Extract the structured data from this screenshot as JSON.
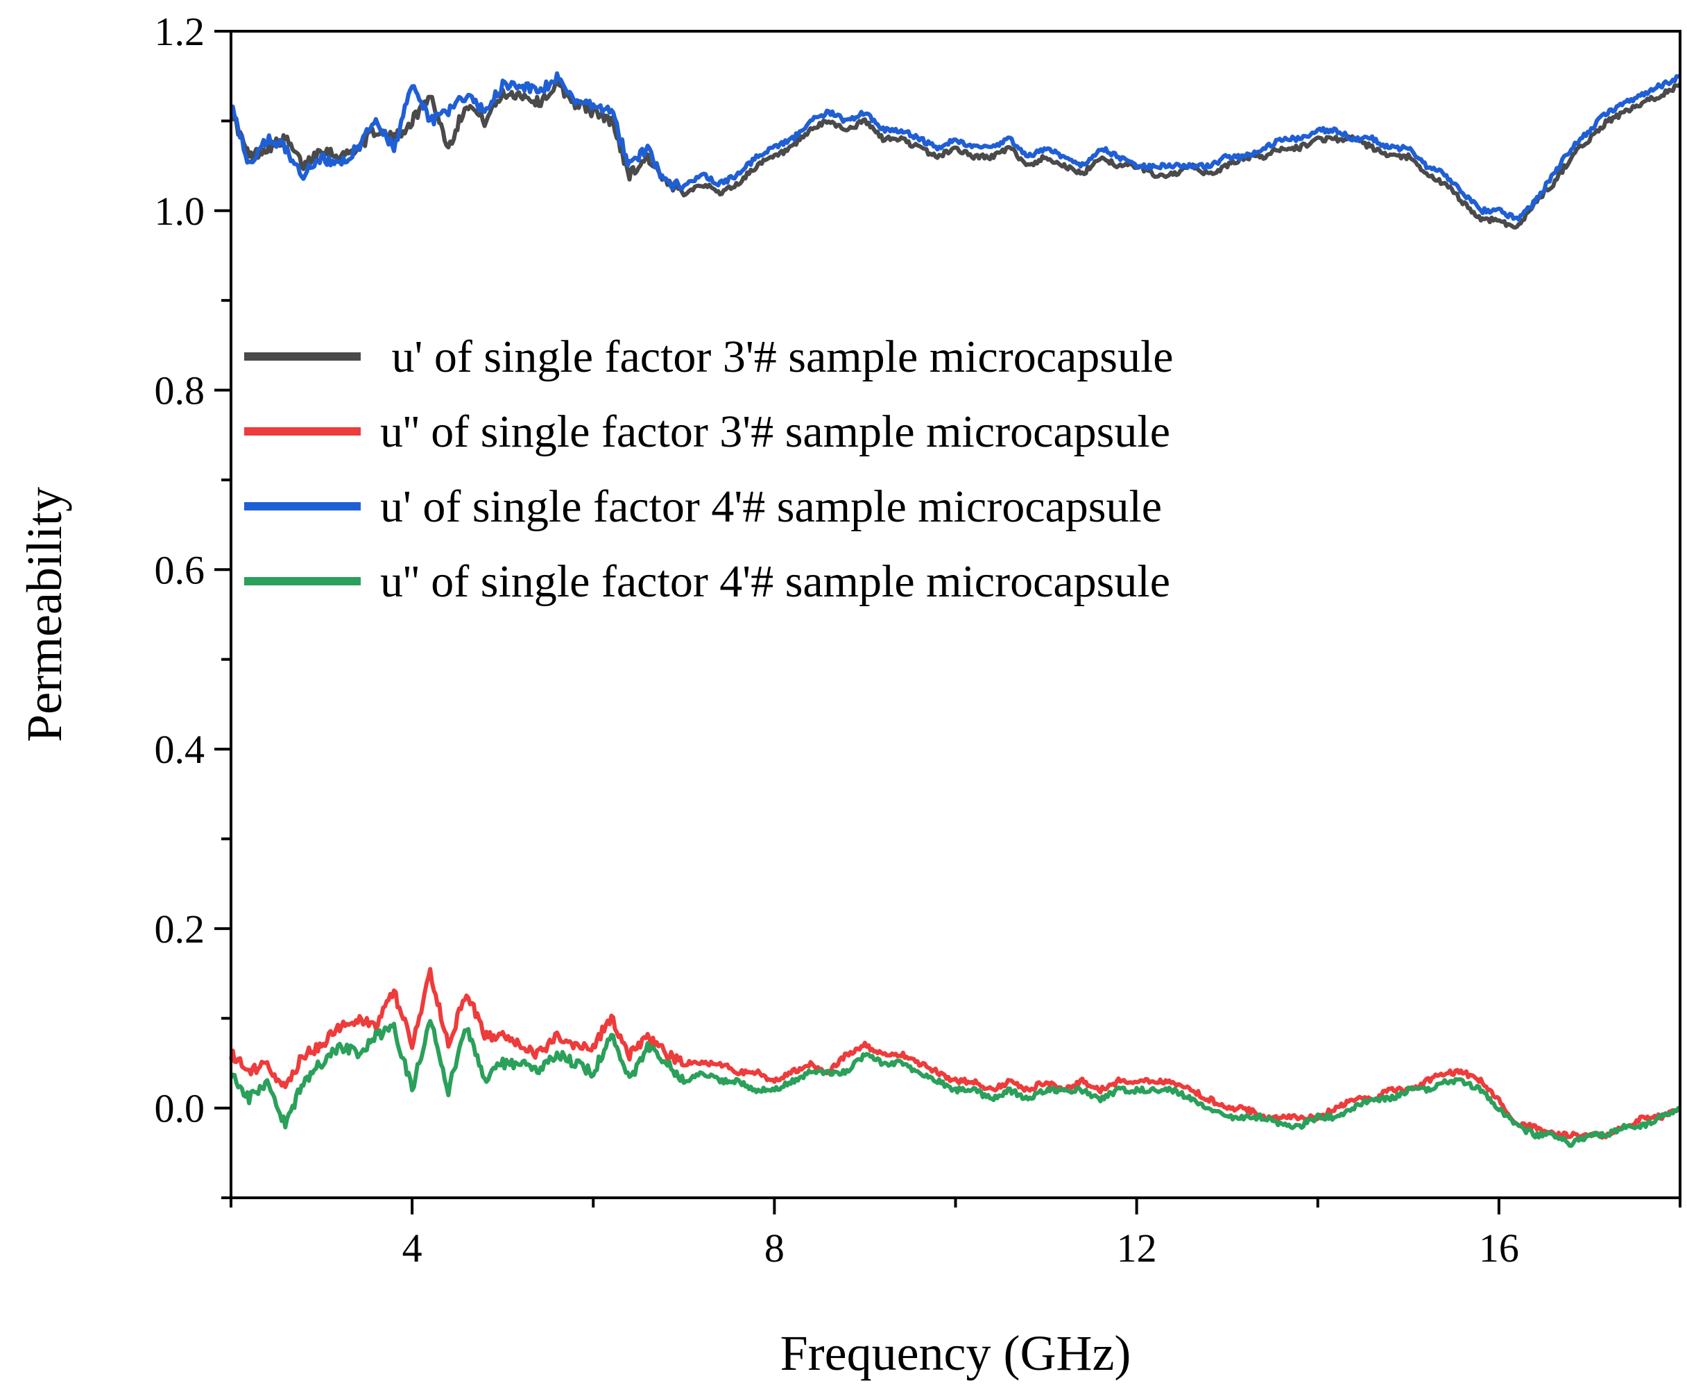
{
  "chart_data": {
    "type": "line",
    "title": "",
    "xlabel": "Frequency (GHz)",
    "ylabel": "Permeability",
    "xlim": [
      2,
      18
    ],
    "ylim": [
      -0.1,
      1.2
    ],
    "x_ticks": [
      4,
      8,
      12,
      16
    ],
    "x_tick_labels": [
      "4",
      "8",
      "12",
      "16"
    ],
    "y_ticks": [
      0.0,
      0.2,
      0.4,
      0.6,
      0.8,
      1.0,
      1.2
    ],
    "y_tick_labels": [
      "0.0",
      "0.2",
      "0.4",
      "0.6",
      "0.8",
      "1.0",
      "1.2"
    ],
    "grid": false,
    "legend_position": "center-left",
    "series": [
      {
        "name": " u' of single factor 3'# sample microcapsule",
        "color": "#4a4a4a",
        "x": [
          2,
          2.2,
          2.4,
          2.6,
          2.8,
          3,
          3.2,
          3.4,
          3.6,
          3.8,
          4,
          4.2,
          4.4,
          4.6,
          4.8,
          5,
          5.2,
          5.4,
          5.6,
          5.8,
          6,
          6.2,
          6.4,
          6.6,
          6.8,
          7,
          7.2,
          7.4,
          7.6,
          7.8,
          8,
          8.2,
          8.4,
          8.6,
          8.8,
          9,
          9.2,
          9.4,
          9.6,
          9.8,
          10,
          10.2,
          10.4,
          10.6,
          10.8,
          11,
          11.2,
          11.4,
          11.6,
          11.8,
          12,
          12.2,
          12.4,
          12.6,
          12.8,
          13,
          13.2,
          13.4,
          13.6,
          13.8,
          14,
          14.2,
          14.4,
          14.6,
          14.8,
          15,
          15.2,
          15.4,
          15.6,
          15.8,
          16,
          16.2,
          16.4,
          16.6,
          16.8,
          17,
          17.2,
          17.4,
          17.6,
          17.8,
          18
        ],
        "y": [
          1.11,
          1.06,
          1.07,
          1.08,
          1.05,
          1.07,
          1.06,
          1.07,
          1.09,
          1.08,
          1.1,
          1.13,
          1.07,
          1.12,
          1.1,
          1.13,
          1.13,
          1.12,
          1.14,
          1.12,
          1.11,
          1.1,
          1.04,
          1.06,
          1.03,
          1.02,
          1.03,
          1.02,
          1.03,
          1.05,
          1.06,
          1.07,
          1.09,
          1.1,
          1.09,
          1.1,
          1.08,
          1.08,
          1.07,
          1.06,
          1.07,
          1.06,
          1.06,
          1.07,
          1.05,
          1.06,
          1.05,
          1.04,
          1.06,
          1.05,
          1.05,
          1.04,
          1.04,
          1.05,
          1.04,
          1.05,
          1.06,
          1.06,
          1.07,
          1.07,
          1.08,
          1.08,
          1.08,
          1.07,
          1.06,
          1.06,
          1.04,
          1.03,
          1.01,
          0.99,
          0.99,
          0.98,
          1.01,
          1.03,
          1.06,
          1.08,
          1.1,
          1.11,
          1.12,
          1.13,
          1.14
        ]
      },
      {
        "name": "u'' of single factor 3'# sample microcapsule",
        "color": "#ee3b3b",
        "x": [
          2,
          2.2,
          2.4,
          2.6,
          2.8,
          3,
          3.2,
          3.4,
          3.6,
          3.8,
          4,
          4.2,
          4.4,
          4.6,
          4.8,
          5,
          5.2,
          5.4,
          5.6,
          5.8,
          6,
          6.2,
          6.4,
          6.6,
          6.8,
          7,
          7.2,
          7.4,
          7.6,
          7.8,
          8,
          8.2,
          8.4,
          8.6,
          8.8,
          9,
          9.2,
          9.4,
          9.6,
          9.8,
          10,
          10.2,
          10.4,
          10.6,
          10.8,
          11,
          11.2,
          11.4,
          11.6,
          11.8,
          12,
          12.2,
          12.4,
          12.6,
          12.8,
          13,
          13.2,
          13.4,
          13.6,
          13.8,
          14,
          14.2,
          14.4,
          14.6,
          14.8,
          15,
          15.2,
          15.4,
          15.6,
          15.8,
          16,
          16.2,
          16.4,
          16.6,
          16.8,
          17,
          17.2,
          17.4,
          17.6,
          17.8,
          18
        ],
        "y": [
          0.06,
          0.04,
          0.05,
          0.02,
          0.06,
          0.07,
          0.09,
          0.1,
          0.09,
          0.13,
          0.07,
          0.15,
          0.07,
          0.13,
          0.08,
          0.08,
          0.07,
          0.06,
          0.08,
          0.07,
          0.07,
          0.1,
          0.06,
          0.08,
          0.06,
          0.05,
          0.05,
          0.05,
          0.04,
          0.04,
          0.03,
          0.04,
          0.05,
          0.04,
          0.06,
          0.07,
          0.06,
          0.06,
          0.05,
          0.04,
          0.03,
          0.03,
          0.02,
          0.03,
          0.02,
          0.03,
          0.02,
          0.03,
          0.02,
          0.03,
          0.03,
          0.03,
          0.03,
          0.02,
          0.01,
          0.0,
          0.0,
          -0.01,
          -0.01,
          -0.01,
          -0.01,
          0.0,
          0.01,
          0.01,
          0.02,
          0.02,
          0.03,
          0.04,
          0.04,
          0.03,
          0.01,
          -0.02,
          -0.02,
          -0.03,
          -0.03,
          -0.03,
          -0.03,
          -0.02,
          -0.01,
          -0.01,
          0.0
        ]
      },
      {
        "name": "u' of single factor 4'# sample microcapsule",
        "color": "#1f5fd6",
        "x": [
          2,
          2.2,
          2.4,
          2.6,
          2.8,
          3,
          3.2,
          3.4,
          3.6,
          3.8,
          4,
          4.2,
          4.4,
          4.6,
          4.8,
          5,
          5.2,
          5.4,
          5.6,
          5.8,
          6,
          6.2,
          6.4,
          6.6,
          6.8,
          7,
          7.2,
          7.4,
          7.6,
          7.8,
          8,
          8.2,
          8.4,
          8.6,
          8.8,
          9,
          9.2,
          9.4,
          9.6,
          9.8,
          10,
          10.2,
          10.4,
          10.6,
          10.8,
          11,
          11.2,
          11.4,
          11.6,
          11.8,
          12,
          12.2,
          12.4,
          12.6,
          12.8,
          13,
          13.2,
          13.4,
          13.6,
          13.8,
          14,
          14.2,
          14.4,
          14.6,
          14.8,
          15,
          15.2,
          15.4,
          15.6,
          15.8,
          16,
          16.2,
          16.4,
          16.6,
          16.8,
          17,
          17.2,
          17.4,
          17.6,
          17.8,
          18
        ],
        "y": [
          1.12,
          1.05,
          1.08,
          1.07,
          1.04,
          1.06,
          1.05,
          1.07,
          1.1,
          1.07,
          1.14,
          1.1,
          1.11,
          1.13,
          1.11,
          1.14,
          1.14,
          1.13,
          1.15,
          1.12,
          1.12,
          1.11,
          1.05,
          1.07,
          1.03,
          1.03,
          1.04,
          1.03,
          1.04,
          1.06,
          1.07,
          1.08,
          1.1,
          1.11,
          1.1,
          1.11,
          1.09,
          1.09,
          1.08,
          1.07,
          1.08,
          1.07,
          1.07,
          1.08,
          1.06,
          1.07,
          1.06,
          1.05,
          1.07,
          1.06,
          1.05,
          1.05,
          1.05,
          1.05,
          1.05,
          1.06,
          1.06,
          1.07,
          1.08,
          1.08,
          1.09,
          1.09,
          1.08,
          1.08,
          1.07,
          1.07,
          1.05,
          1.04,
          1.02,
          1.0,
          1.0,
          0.99,
          1.01,
          1.04,
          1.07,
          1.09,
          1.11,
          1.12,
          1.13,
          1.14,
          1.15
        ]
      },
      {
        "name": "u'' of single factor 4'# sample microcapsule",
        "color": "#2aa05a",
        "x": [
          2,
          2.2,
          2.4,
          2.6,
          2.8,
          3,
          3.2,
          3.4,
          3.6,
          3.8,
          4,
          4.2,
          4.4,
          4.6,
          4.8,
          5,
          5.2,
          5.4,
          5.6,
          5.8,
          6,
          6.2,
          6.4,
          6.6,
          6.8,
          7,
          7.2,
          7.4,
          7.6,
          7.8,
          8,
          8.2,
          8.4,
          8.6,
          8.8,
          9,
          9.2,
          9.4,
          9.6,
          9.8,
          10,
          10.2,
          10.4,
          10.6,
          10.8,
          11,
          11.2,
          11.4,
          11.6,
          11.8,
          12,
          12.2,
          12.4,
          12.6,
          12.8,
          13,
          13.2,
          13.4,
          13.6,
          13.8,
          14,
          14.2,
          14.4,
          14.6,
          14.8,
          15,
          15.2,
          15.4,
          15.6,
          15.8,
          16,
          16.2,
          16.4,
          16.6,
          16.8,
          17,
          17.2,
          17.4,
          17.6,
          17.8,
          18
        ],
        "y": [
          0.04,
          0.01,
          0.03,
          -0.02,
          0.03,
          0.05,
          0.07,
          0.06,
          0.08,
          0.09,
          0.02,
          0.1,
          0.02,
          0.09,
          0.03,
          0.05,
          0.05,
          0.04,
          0.06,
          0.05,
          0.04,
          0.08,
          0.03,
          0.07,
          0.05,
          0.03,
          0.04,
          0.03,
          0.03,
          0.02,
          0.02,
          0.03,
          0.04,
          0.04,
          0.04,
          0.06,
          0.05,
          0.05,
          0.04,
          0.03,
          0.02,
          0.02,
          0.01,
          0.02,
          0.01,
          0.02,
          0.02,
          0.02,
          0.01,
          0.02,
          0.02,
          0.02,
          0.02,
          0.01,
          0.0,
          -0.01,
          -0.01,
          -0.01,
          -0.02,
          -0.02,
          -0.01,
          -0.01,
          0.0,
          0.01,
          0.01,
          0.02,
          0.02,
          0.03,
          0.03,
          0.02,
          0.0,
          -0.02,
          -0.03,
          -0.03,
          -0.04,
          -0.03,
          -0.03,
          -0.02,
          -0.02,
          -0.01,
          0.0
        ]
      }
    ]
  }
}
